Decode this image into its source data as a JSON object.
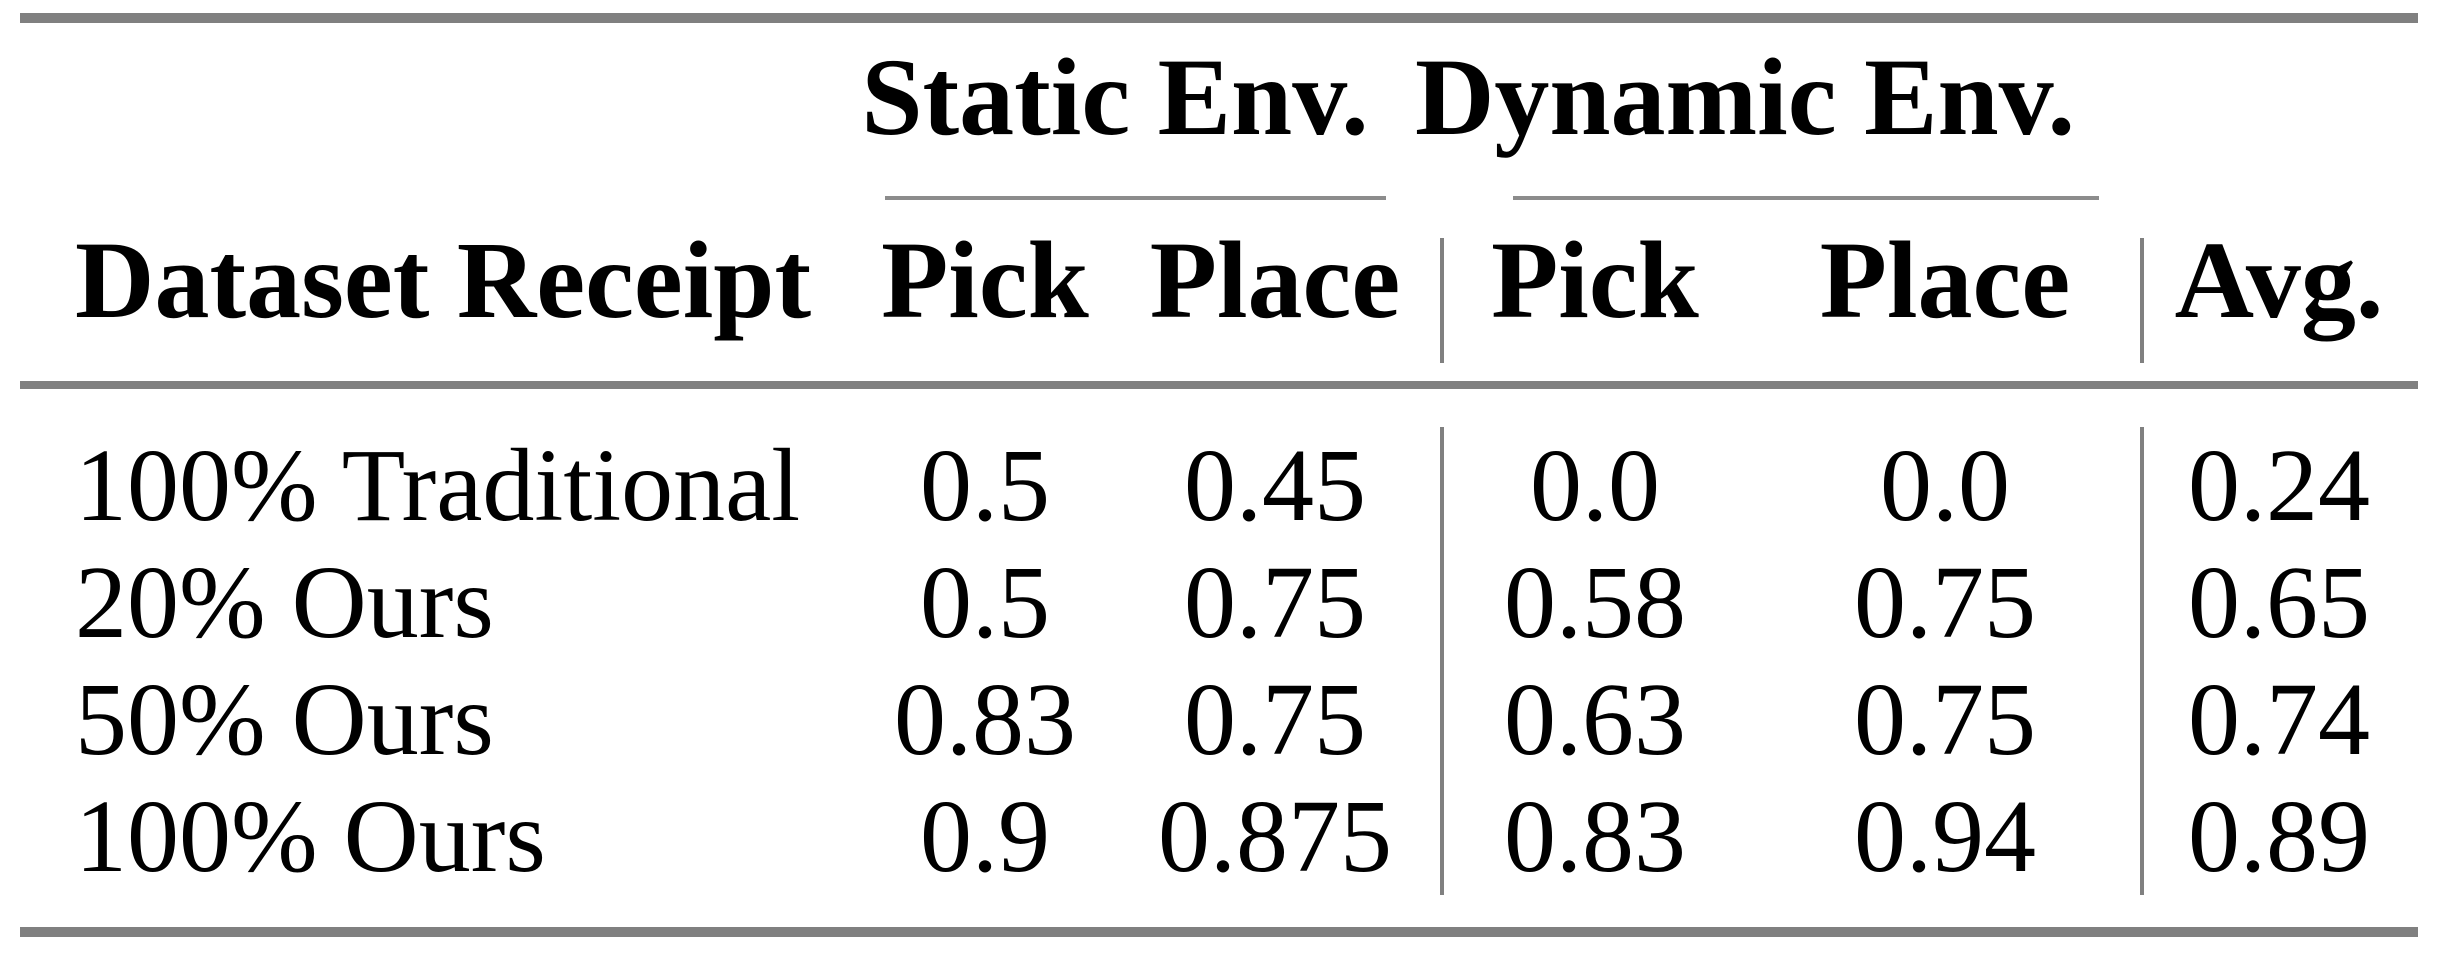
{
  "table": {
    "group_headers": [
      {
        "label": "Static Env."
      },
      {
        "label": "Dynamic Env."
      }
    ],
    "header": {
      "row_label": "Dataset Receipt",
      "subcolumns": [
        "Pick",
        "Place",
        "Pick",
        "Place"
      ],
      "avg_label": "Avg."
    },
    "rows": [
      {
        "label": "100% Traditional",
        "values": [
          "0.5",
          "0.45",
          "0.0",
          "0.0",
          "0.24"
        ]
      },
      {
        "label": "20% Ours",
        "values": [
          "0.5",
          "0.75",
          "0.58",
          "0.75",
          "0.65"
        ]
      },
      {
        "label": "50% Ours",
        "values": [
          "0.83",
          "0.75",
          "0.63",
          "0.75",
          "0.74"
        ]
      },
      {
        "label": "100% Ours",
        "values": [
          "0.9",
          "0.875",
          "0.83",
          "0.94",
          "0.89"
        ]
      }
    ],
    "colors": {
      "rule_gray": "#808080",
      "text": "#000000",
      "background": "#ffffff"
    }
  }
}
